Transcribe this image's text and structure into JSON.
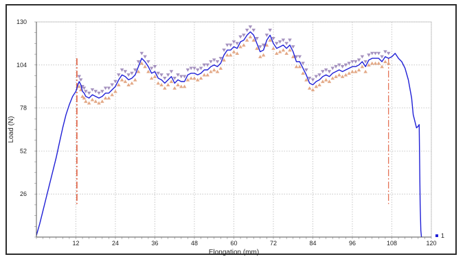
{
  "chart_data": {
    "type": "line",
    "xlabel": "Elongation (mm)",
    "ylabel": "Load (N)",
    "xlim": [
      0,
      120
    ],
    "ylim": [
      0,
      130
    ],
    "xticks": [
      12,
      24,
      36,
      48,
      60,
      72,
      84,
      96,
      108,
      120
    ],
    "yticks": [
      26,
      52,
      78,
      104,
      130
    ],
    "grid": true,
    "legend": {
      "position": "bottom-right",
      "entries": [
        {
          "label": "1",
          "color": "#1f1fd6"
        }
      ]
    },
    "colors": {
      "series": "#1f1fd6",
      "marker_up": "#e0a07a",
      "marker_down": "#9b86b8",
      "vline": "#e05a3a"
    },
    "vertical_lines": [
      12.3,
      107.0
    ],
    "series": [
      {
        "name": "1",
        "x": [
          0,
          1,
          2,
          3,
          4,
          5,
          6,
          7,
          8,
          9,
          10,
          11,
          12,
          12.6,
          13,
          13.5,
          14,
          14.5,
          15,
          16,
          17,
          18,
          19,
          20,
          21,
          22,
          23,
          24,
          25,
          26,
          27,
          28,
          29,
          30,
          31,
          32,
          33,
          34,
          35,
          36,
          37,
          38,
          39,
          40,
          41,
          42,
          43,
          44,
          45,
          46,
          47,
          48,
          49,
          50,
          51,
          52,
          53,
          54,
          55,
          56,
          57,
          58,
          59,
          60,
          61,
          62,
          63,
          64,
          65,
          66,
          67,
          68,
          69,
          70,
          71,
          72,
          73,
          74,
          75,
          76,
          77,
          78,
          79,
          80,
          81,
          82,
          83,
          84,
          85,
          86,
          87,
          88,
          89,
          90,
          91,
          92,
          93,
          94,
          95,
          96,
          97,
          98,
          99,
          100,
          101,
          102,
          103,
          104,
          105,
          106,
          107,
          108,
          109,
          110,
          111,
          112,
          113,
          114,
          114.5,
          115,
          115.5,
          116,
          116.3,
          116.6,
          116.8,
          117
        ],
        "y": [
          1,
          8,
          16,
          24,
          32,
          40,
          48,
          57,
          66,
          74,
          80,
          85,
          88,
          92,
          94,
          92,
          88,
          87,
          85,
          84,
          86,
          85,
          84,
          85,
          87,
          87,
          89,
          91,
          95,
          98,
          97,
          95,
          96,
          98,
          103,
          108,
          106,
          103,
          99,
          100,
          96,
          95,
          93,
          95,
          97,
          93,
          95,
          94,
          94,
          98,
          99,
          99,
          98,
          99,
          101,
          101,
          103,
          104,
          103,
          105,
          110,
          113,
          113,
          115,
          114,
          118,
          119,
          122,
          124,
          122,
          117,
          112,
          113,
          119,
          122,
          117,
          114,
          115,
          116,
          114,
          116,
          112,
          106,
          106,
          102,
          98,
          93,
          92,
          94,
          95,
          97,
          98,
          97,
          99,
          100,
          101,
          100,
          101,
          102,
          103,
          103,
          104,
          106,
          103,
          107,
          108,
          108,
          108,
          106,
          109,
          108,
          109,
          111,
          108,
          106,
          102,
          95,
          84,
          74,
          70,
          66,
          67,
          68,
          20,
          4,
          0
        ]
      }
    ]
  }
}
